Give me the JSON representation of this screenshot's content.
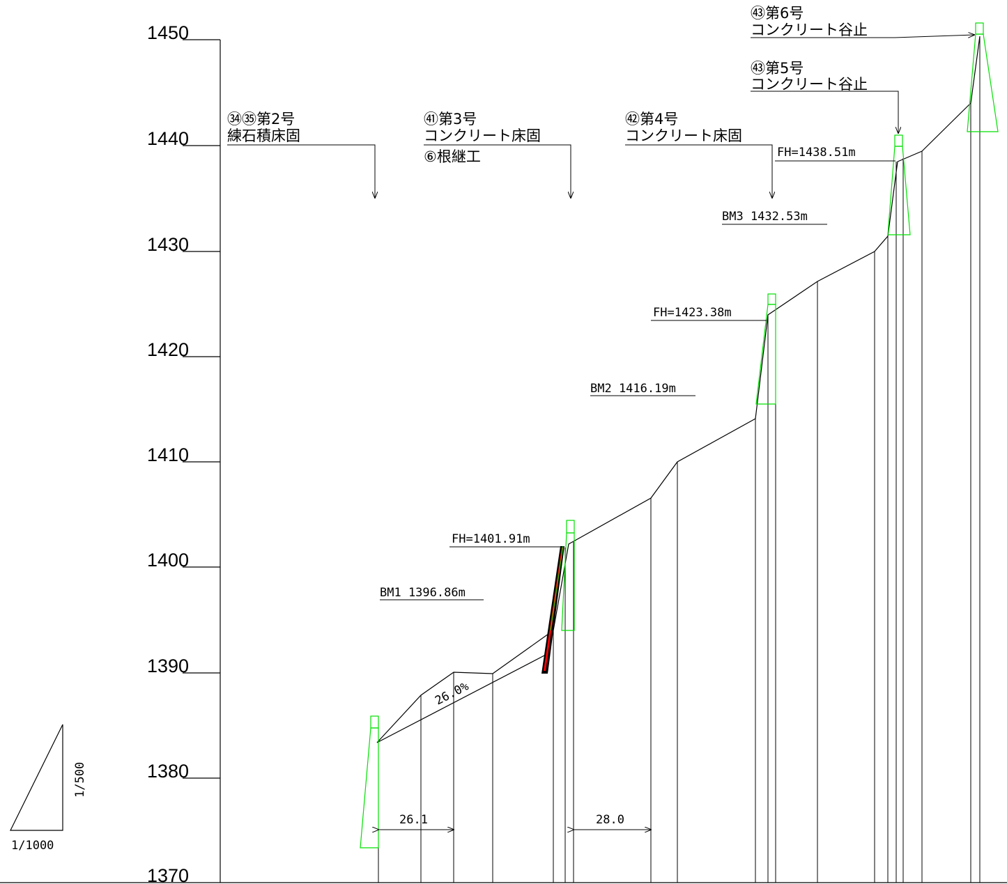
{
  "elevation_axis": {
    "labels": [
      "1450",
      "1440",
      "1430",
      "1420",
      "1410",
      "1400",
      "1390",
      "1380",
      "1370"
    ]
  },
  "structures": {
    "s2": {
      "line1": "㉞㉟第2号",
      "line2": "練石積床固"
    },
    "s3": {
      "line1": "㊶第3号",
      "line2": "コンクリート床固",
      "line3": "⑥根継工"
    },
    "s4": {
      "line1": "㊷第4号",
      "line2": "コンクリート床固"
    },
    "s5": {
      "line1": "㊸第5号",
      "line2": "コンクリート谷止"
    },
    "s6": {
      "line1": "㊸第6号",
      "line2": "コンクリート谷止"
    }
  },
  "benchmarks": {
    "bm1": "BM1 1396.86m",
    "bm2": "BM2 1416.19m",
    "bm3": "BM3 1432.53m"
  },
  "foundation_heights": {
    "fh1": "FH=1401.91m",
    "fh2": "FH=1423.38m",
    "fh3": "FH=1438.51m"
  },
  "slope_label": "26.0%",
  "dimensions": {
    "d1": "26.1",
    "d2": "28.0"
  },
  "scale": {
    "horizontal": "1/1000",
    "vertical": "1/500"
  },
  "colors": {
    "line": "#000000",
    "dam_outline": "#00e000",
    "apron": "#ff0000"
  }
}
